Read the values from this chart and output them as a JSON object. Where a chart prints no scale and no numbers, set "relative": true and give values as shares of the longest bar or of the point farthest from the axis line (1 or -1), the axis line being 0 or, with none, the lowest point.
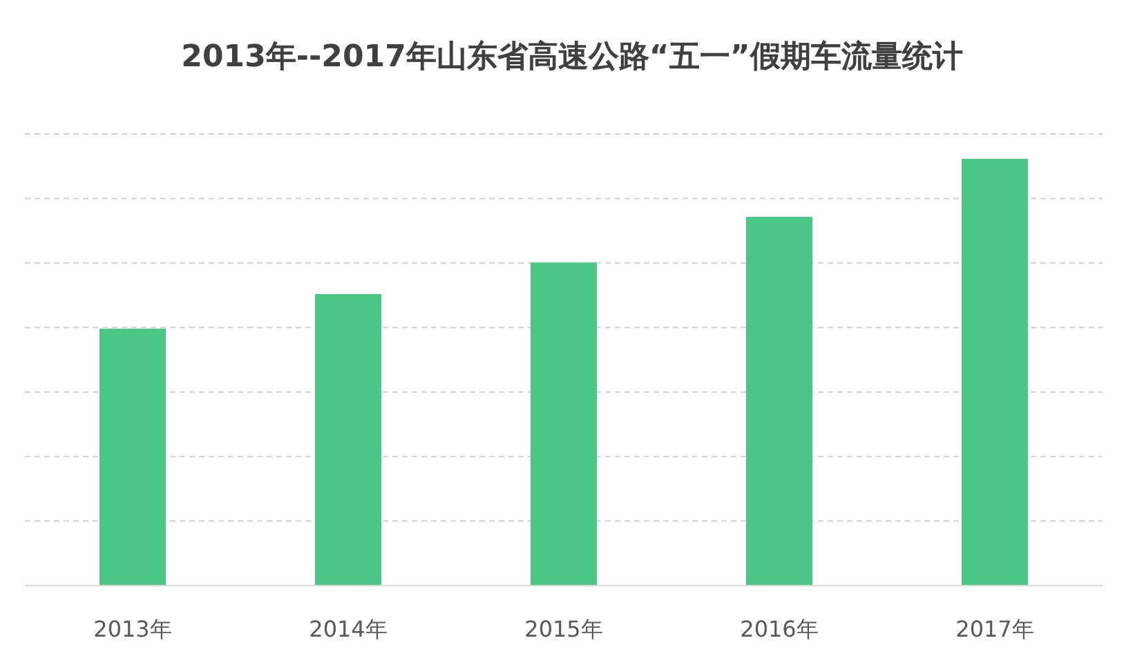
{
  "chart_data": {
    "type": "bar",
    "title": "2013年--2017年山东省高速公路“五一”假期车流量统计",
    "relative": true,
    "grid": "y",
    "color": "#4cc686",
    "categories": [
      "2013年",
      "2014年",
      "2015年",
      "2016年",
      "2017年"
    ],
    "values": [
      0.602,
      0.683,
      0.757,
      0.864,
      1
    ]
  }
}
